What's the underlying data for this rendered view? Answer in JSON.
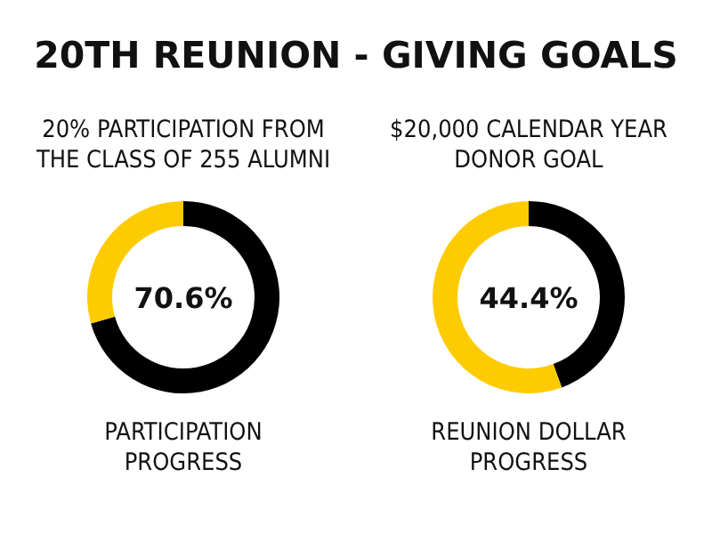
{
  "chart_data": [
    {
      "type": "donut",
      "title": "20TH REUNION - GIVING GOALS",
      "subtitle": "20% PARTICIPATION FROM THE CLASS OF 255 ALUMNI",
      "xlabel": "PARTICIPATION PROGRESS",
      "categories": [
        null,
        null
      ],
      "values": [
        70.6,
        29.4
      ],
      "colors": [
        "#000000",
        "#fecb00"
      ],
      "annotations": [
        "70.6%"
      ]
    },
    {
      "type": "donut",
      "subtitle": "$20,000 CALENDAR YEAR DONOR GOAL",
      "xlabel": "REUNION DOLLAR PROGRESS",
      "categories": [
        null,
        null
      ],
      "values": [
        44.4,
        55.6
      ],
      "colors": [
        "#000000",
        "#fecb00"
      ],
      "annotations": [
        "44.4%"
      ]
    }
  ]
}
